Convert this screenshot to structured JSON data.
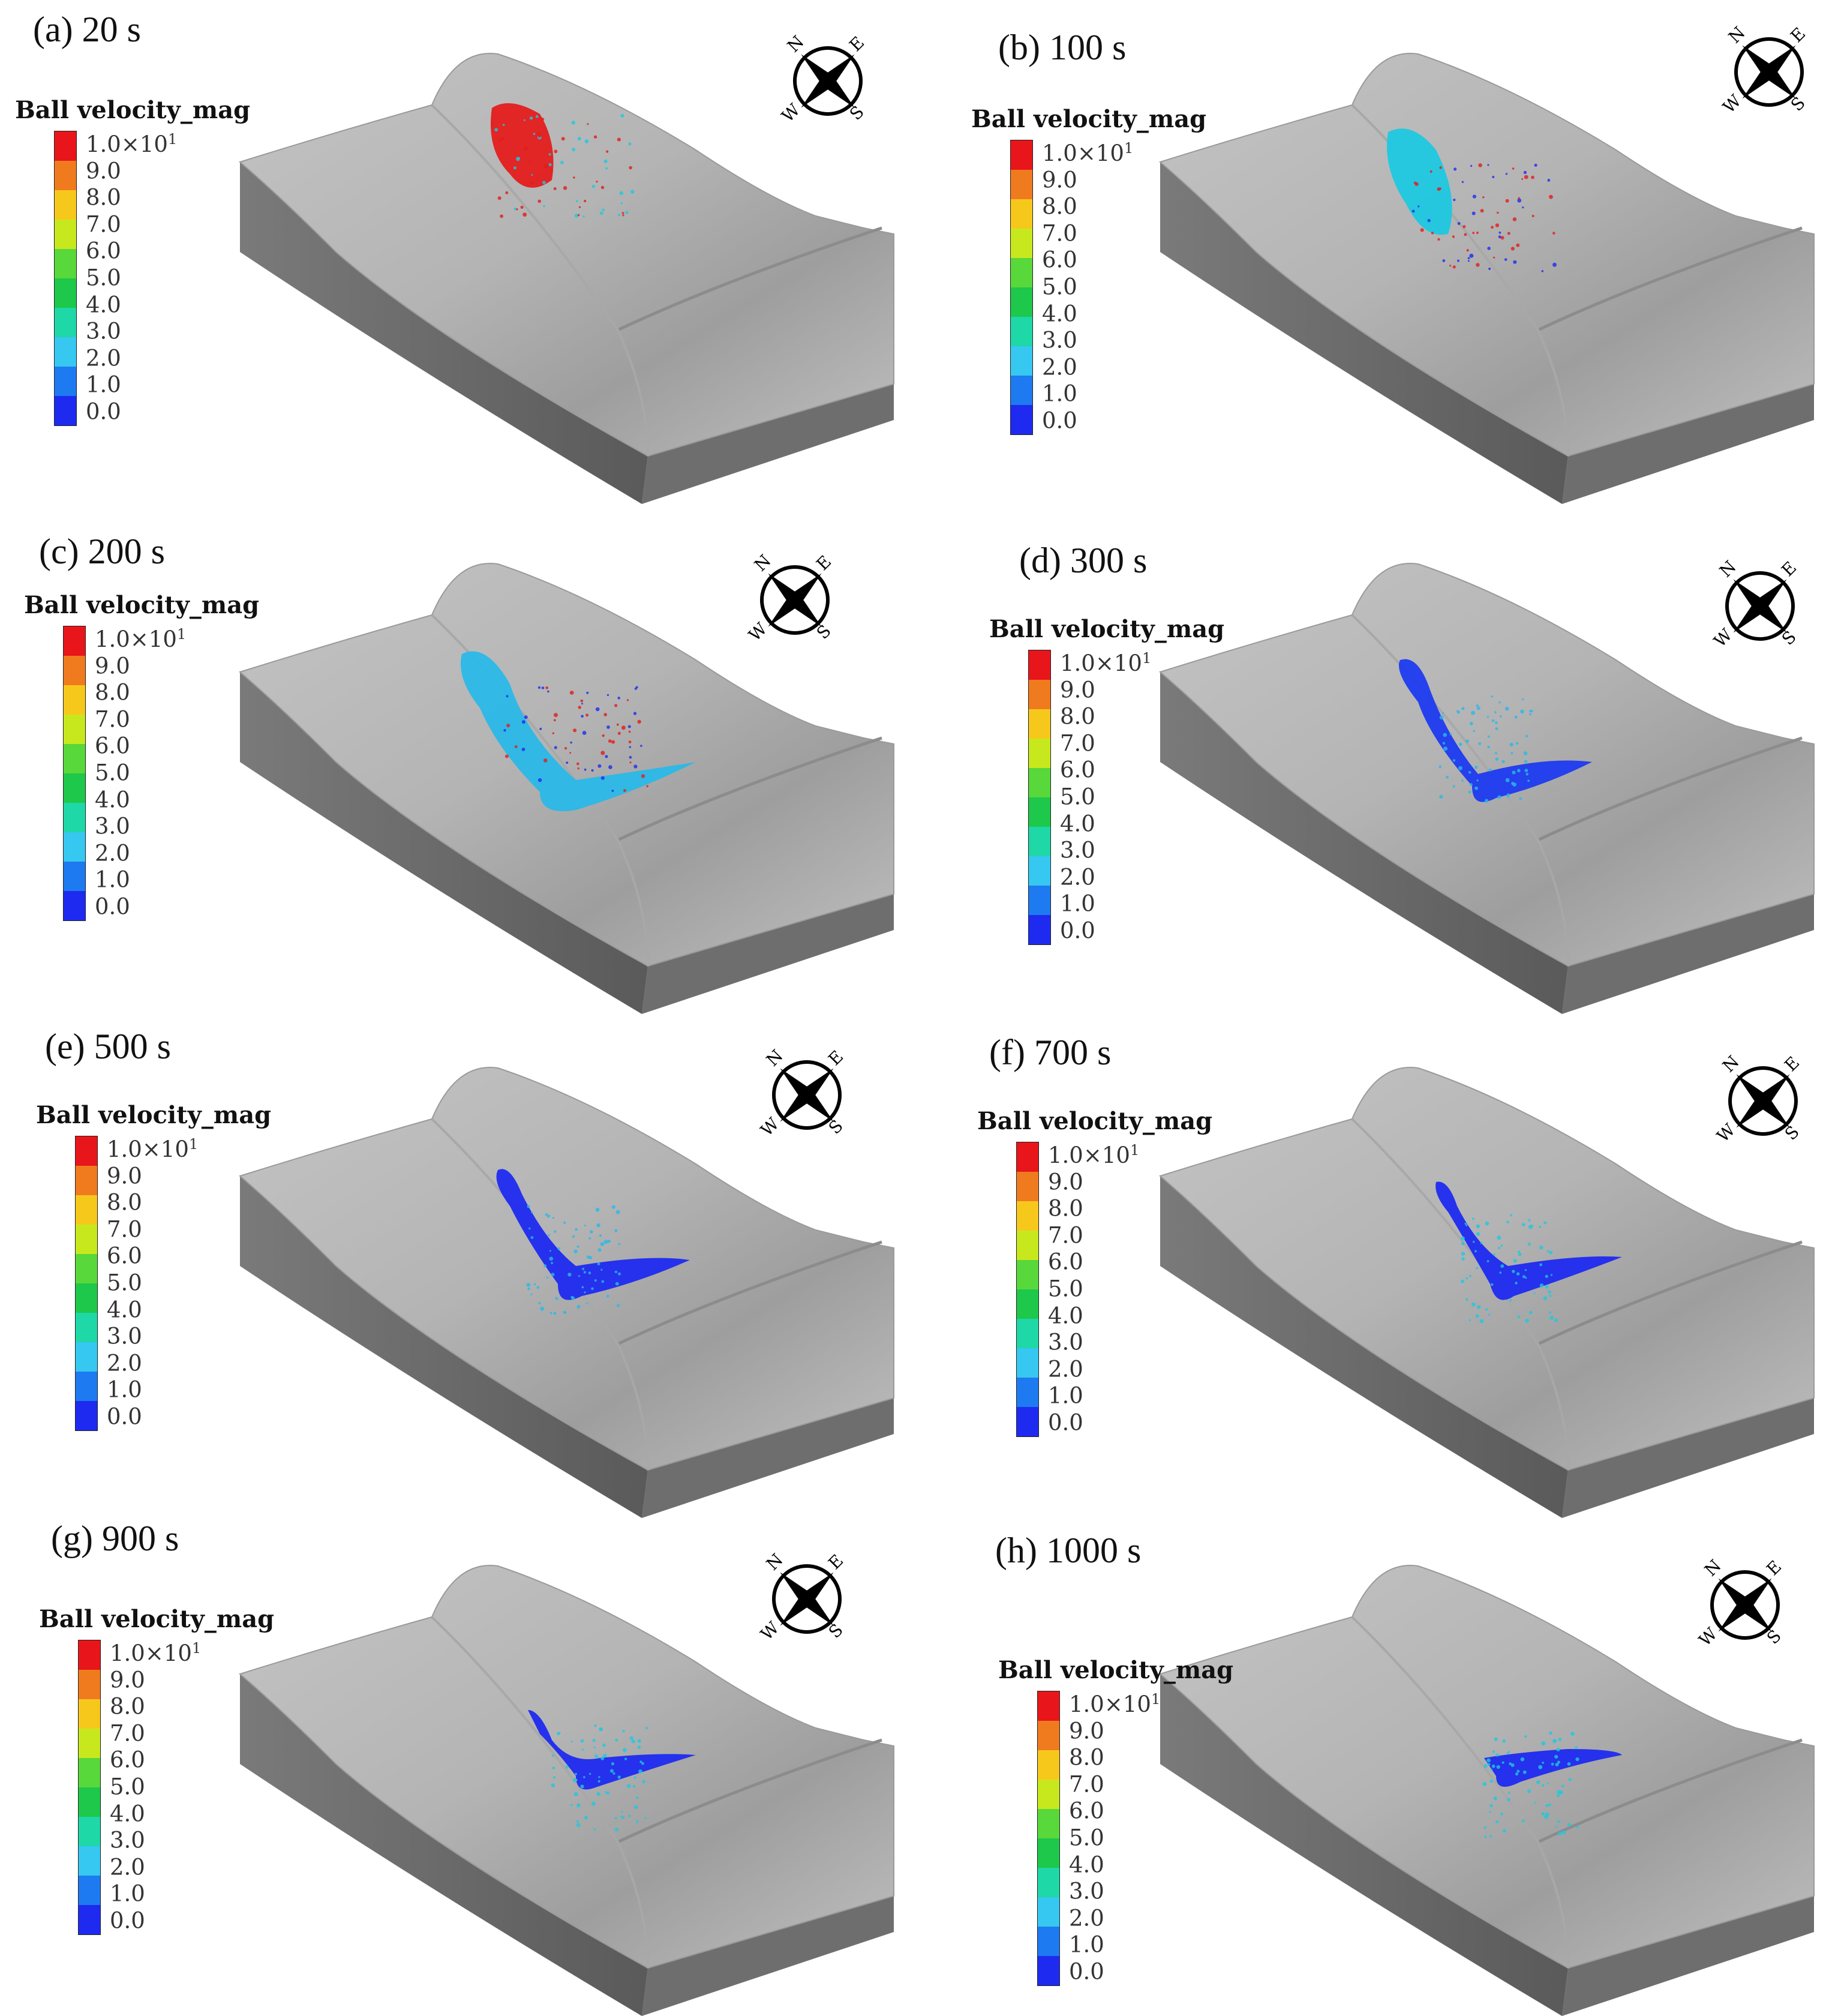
{
  "legend": {
    "title": "Ball velocity_mag",
    "top_label_base": "1.0×10",
    "top_label_exp": "1",
    "labels": [
      "9.0",
      "8.0",
      "7.0",
      "6.0",
      "5.0",
      "4.0",
      "3.0",
      "2.0",
      "1.0",
      "0.0"
    ],
    "colors": [
      "#e8161a",
      "#f07a1e",
      "#f7c81c",
      "#c8e81e",
      "#58d83a",
      "#1ec84a",
      "#1ed8a8",
      "#36c8f0",
      "#1e7af0",
      "#1e2af0"
    ]
  },
  "compass": {
    "n": "N",
    "e": "E",
    "s": "S",
    "w": "W"
  },
  "panels": [
    {
      "id": "a",
      "title": "(a) 20 s",
      "stage": 0
    },
    {
      "id": "b",
      "title": "(b) 100 s",
      "stage": 1
    },
    {
      "id": "c",
      "title": "(c) 200 s",
      "stage": 2
    },
    {
      "id": "d",
      "title": "(d) 300 s",
      "stage": 3
    },
    {
      "id": "e",
      "title": "(e) 500 s",
      "stage": 4
    },
    {
      "id": "f",
      "title": "(f) 700 s",
      "stage": 5
    },
    {
      "id": "g",
      "title": "(g) 900 s",
      "stage": 6
    },
    {
      "id": "h",
      "title": "(h) 1000 s",
      "stage": 7
    }
  ]
}
